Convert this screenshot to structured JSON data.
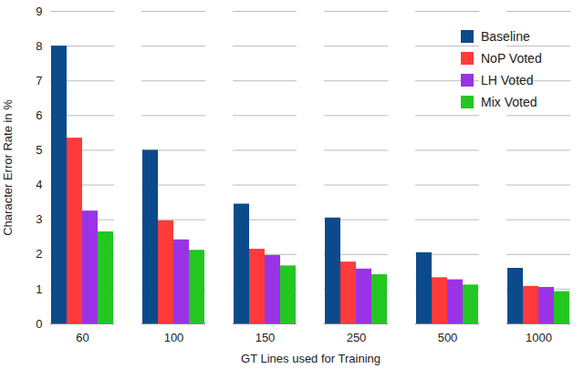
{
  "chart_data": {
    "type": "bar",
    "xlabel": "GT Lines used for Training",
    "ylabel": "Character Error Rate in %",
    "categories": [
      "60",
      "100",
      "150",
      "250",
      "500",
      "1000"
    ],
    "series": [
      {
        "name": "Baseline",
        "color": "#0b4a8b",
        "values": [
          8.0,
          5.0,
          3.45,
          3.05,
          2.05,
          1.6
        ]
      },
      {
        "name": "NoP Voted",
        "color": "#ff3a3a",
        "values": [
          5.35,
          2.97,
          2.15,
          1.78,
          1.33,
          1.08
        ]
      },
      {
        "name": "LH Voted",
        "color": "#9a33e6",
        "values": [
          3.25,
          2.42,
          1.97,
          1.58,
          1.27,
          1.05
        ]
      },
      {
        "name": "Mix Voted",
        "color": "#22c722",
        "values": [
          2.65,
          2.12,
          1.67,
          1.42,
          1.12,
          0.93
        ]
      }
    ],
    "ylim": [
      0,
      9
    ],
    "yticks": [
      0,
      1,
      2,
      3,
      4,
      5,
      6,
      7,
      8,
      9
    ],
    "grid": true,
    "legend": "top-right"
  }
}
